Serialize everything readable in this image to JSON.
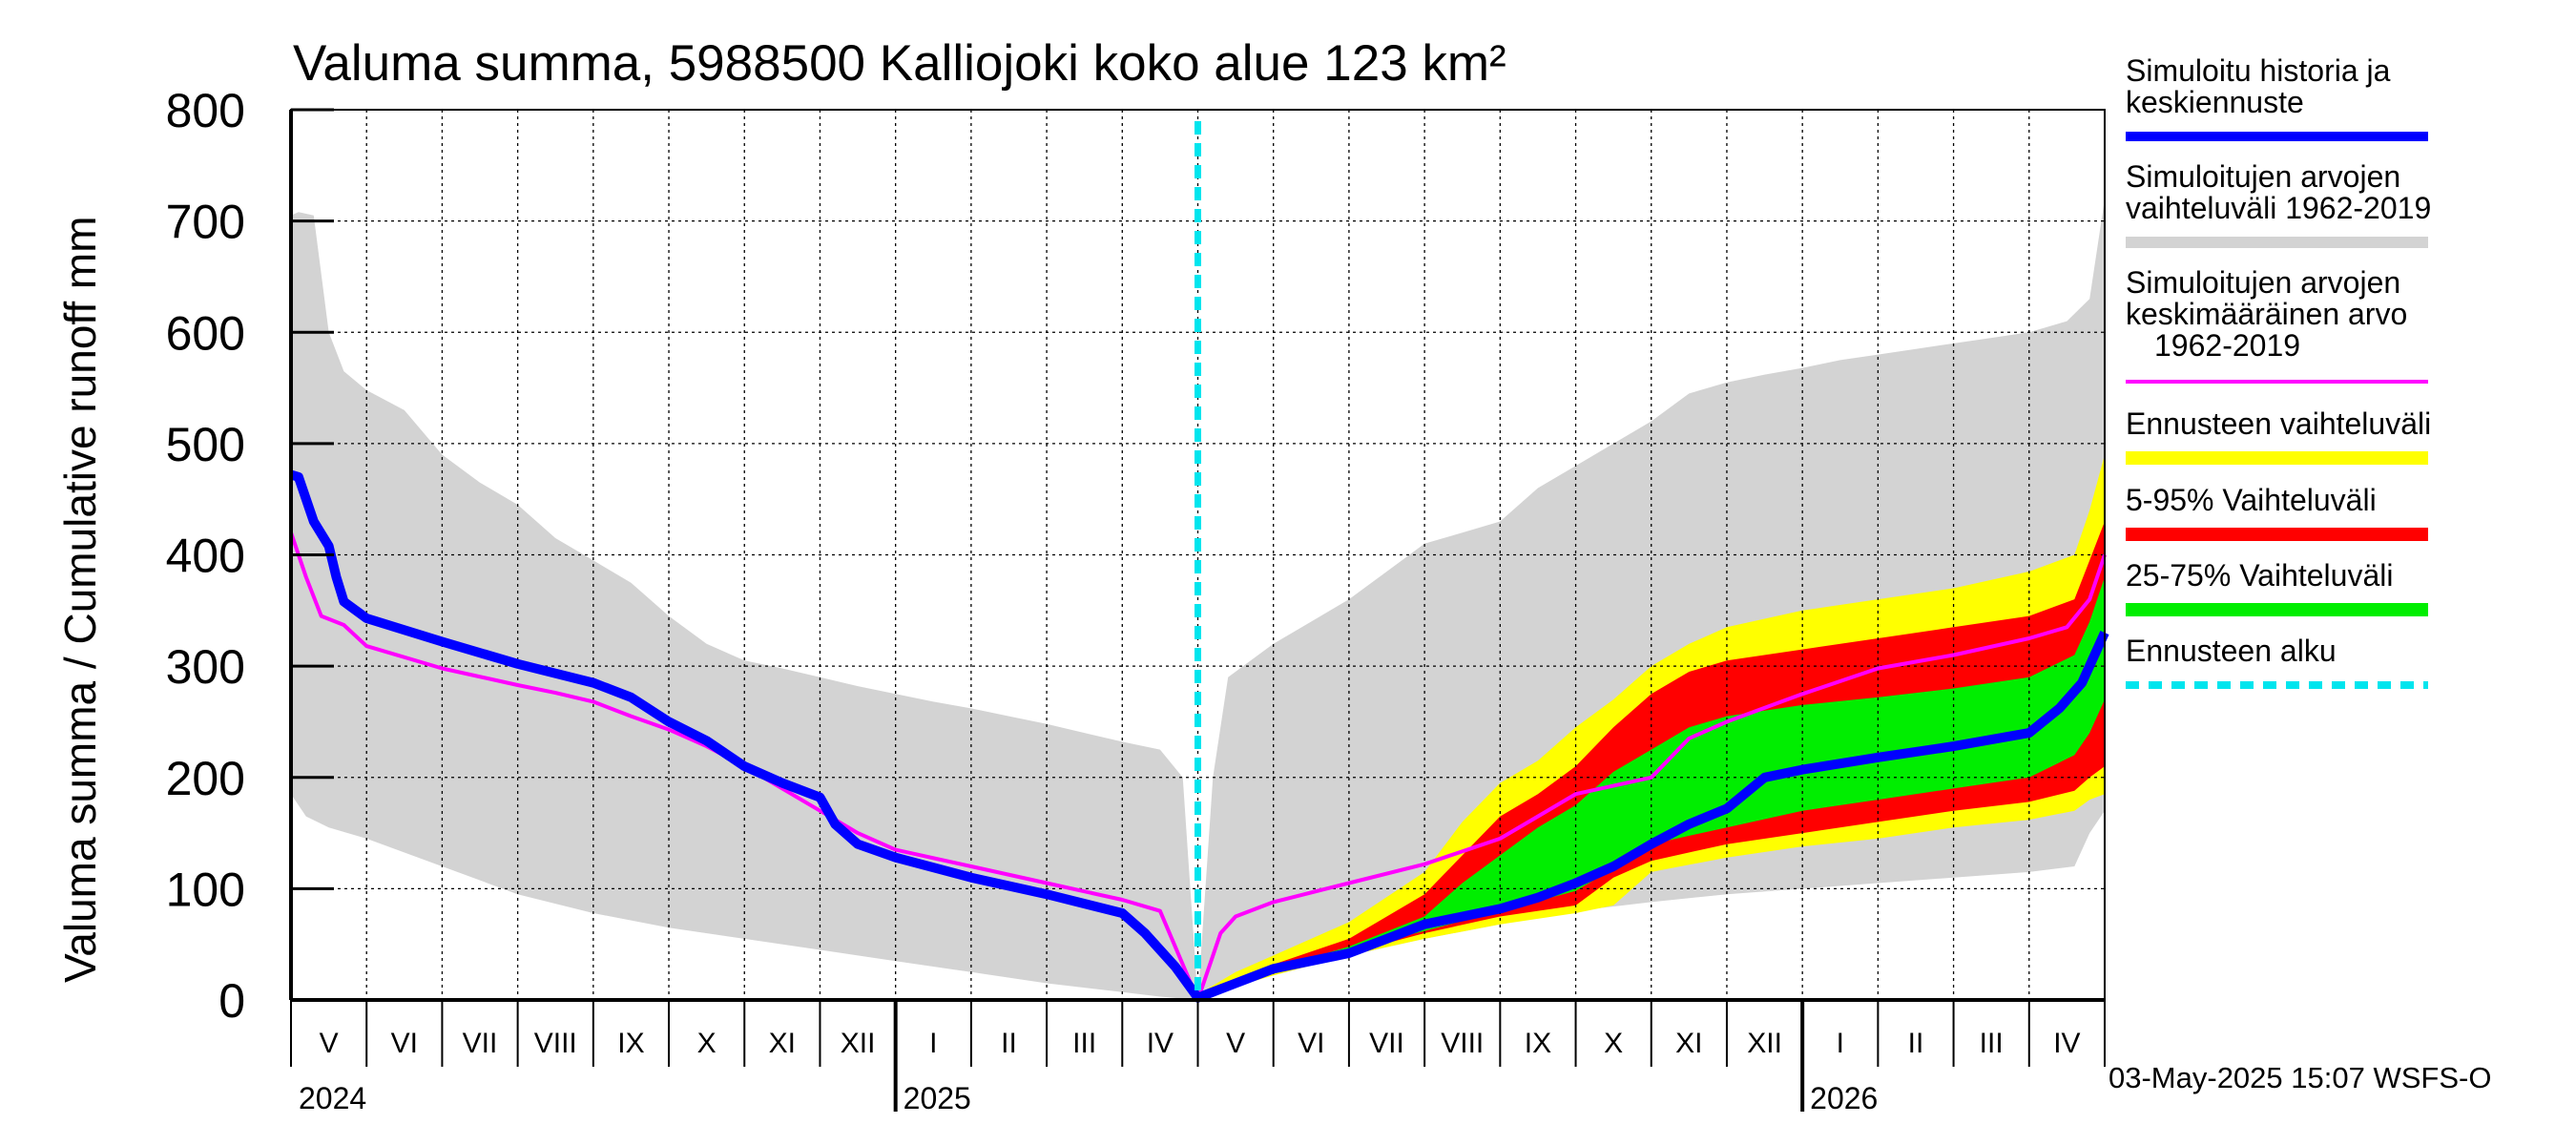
{
  "chart_data": {
    "type": "area",
    "title": "Valuma summa, 5988500 Kalliojoki koko alue 123 km²",
    "ylabel": "Valuma summa / Cumulative runoff    mm",
    "ylim": [
      0,
      800
    ],
    "yticks": [
      "0",
      "100",
      "200",
      "300",
      "400",
      "500",
      "600",
      "700",
      "800"
    ],
    "months": [
      "V",
      "VI",
      "VII",
      "VIII",
      "IX",
      "X",
      "XI",
      "XII",
      "I",
      "II",
      "III",
      "IV",
      "V",
      "VI",
      "VII",
      "VIII",
      "IX",
      "X",
      "XI",
      "XII",
      "I",
      "II",
      "III",
      "IV"
    ],
    "years": [
      {
        "label": "2024",
        "month_index": 0
      },
      {
        "label": "2025",
        "month_index": 8
      },
      {
        "label": "2026",
        "month_index": 20
      }
    ],
    "forecast_start_month": 12,
    "colors": {
      "grey_band": "#d3d3d3",
      "yellow_band": "#ffff00",
      "red_band": "#ff0000",
      "green_band": "#00ee00",
      "blue_line": "#0000ff",
      "magenta_line": "#ff00ff",
      "cyan_line": "#00e5ee"
    },
    "series": {
      "grey_upper": [
        [
          0,
          705
        ],
        [
          0.1,
          708
        ],
        [
          0.3,
          705
        ],
        [
          0.5,
          600
        ],
        [
          0.7,
          565
        ],
        [
          1,
          548
        ],
        [
          1.5,
          530
        ],
        [
          2,
          490
        ],
        [
          2.5,
          465
        ],
        [
          3,
          445
        ],
        [
          3.5,
          415
        ],
        [
          4,
          395
        ],
        [
          4.5,
          375
        ],
        [
          5,
          345
        ],
        [
          5.5,
          320
        ],
        [
          6,
          305
        ],
        [
          6.5,
          298
        ],
        [
          7,
          290
        ],
        [
          7.5,
          282
        ],
        [
          8,
          275
        ],
        [
          8.5,
          268
        ],
        [
          9,
          262
        ],
        [
          9.5,
          255
        ],
        [
          10,
          248
        ],
        [
          10.5,
          240
        ],
        [
          11,
          232
        ],
        [
          11.5,
          225
        ],
        [
          11.8,
          200
        ],
        [
          12,
          0
        ],
        [
          12.2,
          200
        ],
        [
          12.4,
          290
        ],
        [
          12.7,
          305
        ],
        [
          13,
          320
        ],
        [
          13.5,
          340
        ],
        [
          14,
          360
        ],
        [
          14.5,
          385
        ],
        [
          15,
          410
        ],
        [
          15.5,
          420
        ],
        [
          16,
          430
        ],
        [
          16.5,
          460
        ],
        [
          17,
          480
        ],
        [
          17.5,
          500
        ],
        [
          18,
          520
        ],
        [
          18.5,
          545
        ],
        [
          19,
          555
        ],
        [
          19.5,
          562
        ],
        [
          20,
          568
        ],
        [
          20.5,
          575
        ],
        [
          21,
          580
        ],
        [
          21.5,
          585
        ],
        [
          22,
          590
        ],
        [
          22.5,
          595
        ],
        [
          23,
          600
        ],
        [
          23.5,
          610
        ],
        [
          23.8,
          630
        ],
        [
          24,
          720
        ]
      ],
      "grey_lower": [
        [
          0,
          185
        ],
        [
          0.2,
          165
        ],
        [
          0.5,
          155
        ],
        [
          1,
          145
        ],
        [
          2,
          120
        ],
        [
          3,
          95
        ],
        [
          4,
          78
        ],
        [
          5,
          65
        ],
        [
          6,
          55
        ],
        [
          7,
          45
        ],
        [
          8,
          35
        ],
        [
          9,
          25
        ],
        [
          10,
          15
        ],
        [
          11,
          7
        ],
        [
          11.5,
          3
        ],
        [
          12,
          0
        ],
        [
          12.5,
          15
        ],
        [
          13,
          25
        ],
        [
          14,
          40
        ],
        [
          15,
          55
        ],
        [
          16,
          68
        ],
        [
          17,
          80
        ],
        [
          18,
          88
        ],
        [
          19,
          95
        ],
        [
          20,
          100
        ],
        [
          21,
          105
        ],
        [
          22,
          110
        ],
        [
          23,
          115
        ],
        [
          23.6,
          120
        ],
        [
          23.8,
          150
        ],
        [
          24,
          170
        ]
      ],
      "yellow_upper": [
        [
          12,
          5
        ],
        [
          12.5,
          25
        ],
        [
          13,
          40
        ],
        [
          14,
          70
        ],
        [
          15,
          115
        ],
        [
          15.5,
          160
        ],
        [
          16,
          195
        ],
        [
          16.5,
          215
        ],
        [
          17,
          245
        ],
        [
          17.5,
          270
        ],
        [
          18,
          300
        ],
        [
          18.5,
          320
        ],
        [
          19,
          335
        ],
        [
          20,
          350
        ],
        [
          21,
          360
        ],
        [
          22,
          370
        ],
        [
          23,
          385
        ],
        [
          23.6,
          400
        ],
        [
          23.8,
          440
        ],
        [
          24,
          490
        ]
      ],
      "yellow_lower": [
        [
          12,
          0
        ],
        [
          12.5,
          12
        ],
        [
          13,
          22
        ],
        [
          14,
          40
        ],
        [
          15,
          55
        ],
        [
          16,
          68
        ],
        [
          17,
          78
        ],
        [
          17.5,
          85
        ],
        [
          18,
          115
        ],
        [
          19,
          128
        ],
        [
          20,
          138
        ],
        [
          21,
          145
        ],
        [
          22,
          155
        ],
        [
          23,
          162
        ],
        [
          23.6,
          170
        ],
        [
          23.8,
          180
        ],
        [
          24,
          185
        ]
      ],
      "red_upper": [
        [
          12,
          3
        ],
        [
          12.5,
          18
        ],
        [
          13,
          32
        ],
        [
          14,
          55
        ],
        [
          15,
          95
        ],
        [
          15.5,
          130
        ],
        [
          16,
          165
        ],
        [
          16.5,
          185
        ],
        [
          17,
          210
        ],
        [
          17.5,
          245
        ],
        [
          18,
          275
        ],
        [
          18.5,
          295
        ],
        [
          19,
          305
        ],
        [
          20,
          315
        ],
        [
          21,
          325
        ],
        [
          22,
          335
        ],
        [
          23,
          345
        ],
        [
          23.6,
          360
        ],
        [
          23.8,
          395
        ],
        [
          24,
          430
        ]
      ],
      "red_lower": [
        [
          12,
          0
        ],
        [
          12.5,
          12
        ],
        [
          13,
          25
        ],
        [
          14,
          42
        ],
        [
          15,
          60
        ],
        [
          16,
          75
        ],
        [
          17,
          85
        ],
        [
          17.5,
          110
        ],
        [
          18,
          125
        ],
        [
          19,
          140
        ],
        [
          20,
          150
        ],
        [
          21,
          160
        ],
        [
          22,
          170
        ],
        [
          23,
          178
        ],
        [
          23.6,
          188
        ],
        [
          23.8,
          200
        ],
        [
          24,
          210
        ]
      ],
      "green_upper": [
        [
          12,
          2
        ],
        [
          12.5,
          15
        ],
        [
          13,
          28
        ],
        [
          14,
          48
        ],
        [
          15,
          75
        ],
        [
          15.5,
          105
        ],
        [
          16,
          130
        ],
        [
          16.5,
          155
        ],
        [
          17,
          175
        ],
        [
          17.5,
          205
        ],
        [
          18,
          225
        ],
        [
          18.5,
          245
        ],
        [
          19,
          255
        ],
        [
          20,
          265
        ],
        [
          21,
          272
        ],
        [
          22,
          280
        ],
        [
          23,
          290
        ],
        [
          23.6,
          310
        ],
        [
          23.8,
          340
        ],
        [
          24,
          380
        ]
      ],
      "green_lower": [
        [
          12,
          1
        ],
        [
          12.5,
          13
        ],
        [
          13,
          27
        ],
        [
          14,
          45
        ],
        [
          15,
          62
        ],
        [
          16,
          80
        ],
        [
          17,
          98
        ],
        [
          17.5,
          118
        ],
        [
          18,
          140
        ],
        [
          19,
          155
        ],
        [
          20,
          170
        ],
        [
          21,
          180
        ],
        [
          22,
          190
        ],
        [
          23,
          200
        ],
        [
          23.6,
          220
        ],
        [
          23.8,
          240
        ],
        [
          24,
          270
        ]
      ],
      "magenta": [
        [
          0,
          420
        ],
        [
          0.2,
          380
        ],
        [
          0.4,
          345
        ],
        [
          0.7,
          337
        ],
        [
          1,
          318
        ],
        [
          2,
          298
        ],
        [
          3,
          283
        ],
        [
          3.5,
          276
        ],
        [
          4,
          268
        ],
        [
          4.5,
          255
        ],
        [
          5,
          243
        ],
        [
          5.5,
          228
        ],
        [
          6,
          210
        ],
        [
          6.5,
          190
        ],
        [
          7,
          170
        ],
        [
          7.5,
          150
        ],
        [
          8,
          135
        ],
        [
          9,
          120
        ],
        [
          10,
          105
        ],
        [
          11,
          90
        ],
        [
          11.5,
          80
        ],
        [
          12,
          0
        ],
        [
          12.3,
          60
        ],
        [
          12.5,
          75
        ],
        [
          13,
          88
        ],
        [
          14,
          105
        ],
        [
          15,
          122
        ],
        [
          16,
          145
        ],
        [
          16.5,
          165
        ],
        [
          17,
          185
        ],
        [
          18,
          200
        ],
        [
          18.5,
          235
        ],
        [
          19,
          250
        ],
        [
          20,
          275
        ],
        [
          21,
          298
        ],
        [
          22,
          310
        ],
        [
          23,
          325
        ],
        [
          23.5,
          335
        ],
        [
          23.8,
          360
        ],
        [
          24,
          400
        ]
      ],
      "blue": [
        [
          0,
          472
        ],
        [
          0.1,
          470
        ],
        [
          0.3,
          430
        ],
        [
          0.5,
          408
        ],
        [
          0.6,
          380
        ],
        [
          0.7,
          358
        ],
        [
          1,
          343
        ],
        [
          2,
          322
        ],
        [
          3,
          302
        ],
        [
          4,
          285
        ],
        [
          4.5,
          272
        ],
        [
          5,
          250
        ],
        [
          5.5,
          233
        ],
        [
          6,
          210
        ],
        [
          6.5,
          195
        ],
        [
          7,
          182
        ],
        [
          7.2,
          158
        ],
        [
          7.5,
          140
        ],
        [
          8,
          128
        ],
        [
          9,
          110
        ],
        [
          10,
          95
        ],
        [
          11,
          78
        ],
        [
          11.3,
          60
        ],
        [
          11.7,
          30
        ],
        [
          12,
          2
        ],
        [
          12.5,
          15
        ],
        [
          13,
          28
        ],
        [
          14,
          42
        ],
        [
          14.5,
          55
        ],
        [
          15,
          68
        ],
        [
          16,
          82
        ],
        [
          16.5,
          92
        ],
        [
          17,
          105
        ],
        [
          17.5,
          120
        ],
        [
          18,
          140
        ],
        [
          18.5,
          158
        ],
        [
          19,
          172
        ],
        [
          19.5,
          200
        ],
        [
          20,
          207
        ],
        [
          21,
          218
        ],
        [
          22,
          228
        ],
        [
          23,
          240
        ],
        [
          23.4,
          262
        ],
        [
          23.7,
          285
        ],
        [
          24,
          330
        ]
      ]
    },
    "legend": [
      {
        "label": "Simuloitu historia ja keskiennuste",
        "color": "#0000ff",
        "style": "thick"
      },
      {
        "label": "Simuloitujen arvojen vaihteluväli 1962-2019",
        "color": "#d3d3d3",
        "style": "thick"
      },
      {
        "label": "Simuloitujen arvojen keskimääräinen arvo 1962-2019",
        "color": "#ff00ff",
        "style": "thin"
      },
      {
        "label": "Ennusteen vaihteluväli",
        "color": "#ffff00",
        "style": "thick"
      },
      {
        "label": "5-95% Vaihteluväli",
        "color": "#ff0000",
        "style": "thick"
      },
      {
        "label": "25-75% Vaihteluväli",
        "color": "#00ee00",
        "style": "thick"
      },
      {
        "label": "Ennusteen alku",
        "color": "#00e5ee",
        "style": "dashed"
      }
    ]
  },
  "legend_text": {
    "l1a": "Simuloitu historia ja",
    "l1b": "keskiennuste",
    "l2a": "Simuloitujen arvojen",
    "l2b": "vaihteluväli 1962-2019",
    "l3a": "Simuloitujen arvojen",
    "l3b": "keskimääräinen arvo",
    "l3c": "1962-2019",
    "l4": "Ennusteen vaihteluväli",
    "l5": "5-95% Vaihteluväli",
    "l6": "25-75% Vaihteluväli",
    "l7": "Ennusteen alku"
  },
  "footer": "03-May-2025 15:07 WSFS-O"
}
